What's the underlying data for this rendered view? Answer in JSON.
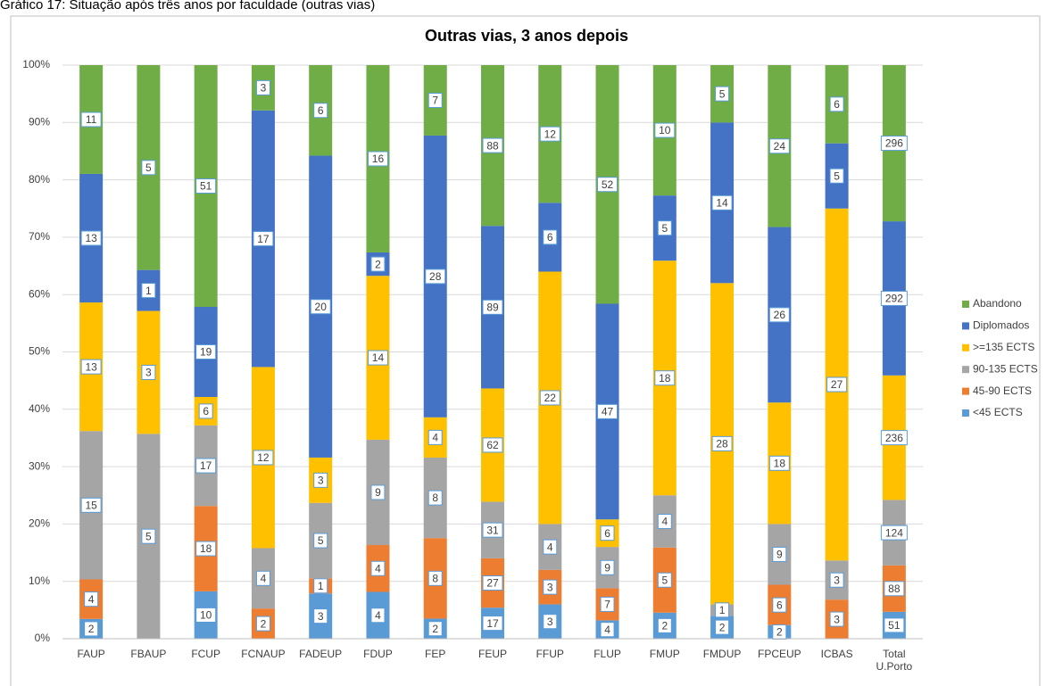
{
  "caption": "Gráfico 17: Situação após três anos por faculdade (outras vias)",
  "chart_data": {
    "type": "bar",
    "stacking": "percent",
    "title": "Outras vias, 3 anos depois",
    "categories": [
      "FAUP",
      "FBAUP",
      "FCUP",
      "FCNAUP",
      "FADEUP",
      "FDUP",
      "FEP",
      "FEUP",
      "FFUP",
      "FLUP",
      "FMUP",
      "FMDUP",
      "FPCEUP",
      "ICBAS",
      "Total U.Porto"
    ],
    "series": [
      {
        "name": "<45 ECTS",
        "color": "#5b9bd5",
        "values": [
          2,
          0,
          10,
          0,
          3,
          4,
          2,
          17,
          3,
          4,
          2,
          2,
          2,
          0,
          51
        ]
      },
      {
        "name": "45-90 ECTS",
        "color": "#ed7d31",
        "values": [
          4,
          0,
          18,
          2,
          1,
          4,
          8,
          27,
          3,
          7,
          5,
          0,
          6,
          3,
          88
        ]
      },
      {
        "name": "90-135 ECTS",
        "color": "#a5a5a5",
        "values": [
          15,
          5,
          17,
          4,
          5,
          9,
          8,
          31,
          4,
          9,
          4,
          1,
          9,
          3,
          124
        ]
      },
      {
        "name": ">=135 ECTS",
        "color": "#ffc000",
        "values": [
          13,
          3,
          6,
          12,
          3,
          14,
          4,
          62,
          22,
          6,
          18,
          28,
          18,
          27,
          236
        ]
      },
      {
        "name": "Diplomados",
        "color": "#4472c4",
        "values": [
          13,
          1,
          19,
          17,
          20,
          2,
          28,
          89,
          6,
          47,
          5,
          14,
          26,
          5,
          292
        ]
      },
      {
        "name": "Abandono",
        "color": "#70ad47",
        "values": [
          11,
          5,
          51,
          3,
          6,
          16,
          7,
          88,
          12,
          52,
          10,
          5,
          24,
          6,
          296
        ]
      }
    ],
    "ylim": [
      0,
      100
    ],
    "yticks": [
      {
        "value": 0,
        "label": "0%"
      },
      {
        "value": 10,
        "label": "10%"
      },
      {
        "value": 20,
        "label": "20%"
      },
      {
        "value": 30,
        "label": "30%"
      },
      {
        "value": 40,
        "label": "40%"
      },
      {
        "value": 50,
        "label": "50%"
      },
      {
        "value": 60,
        "label": "60%"
      },
      {
        "value": 70,
        "label": "70%"
      },
      {
        "value": 80,
        "label": "80%"
      },
      {
        "value": 90,
        "label": "90%"
      },
      {
        "value": 100,
        "label": "100%"
      }
    ],
    "grid": true,
    "legend": "right"
  }
}
